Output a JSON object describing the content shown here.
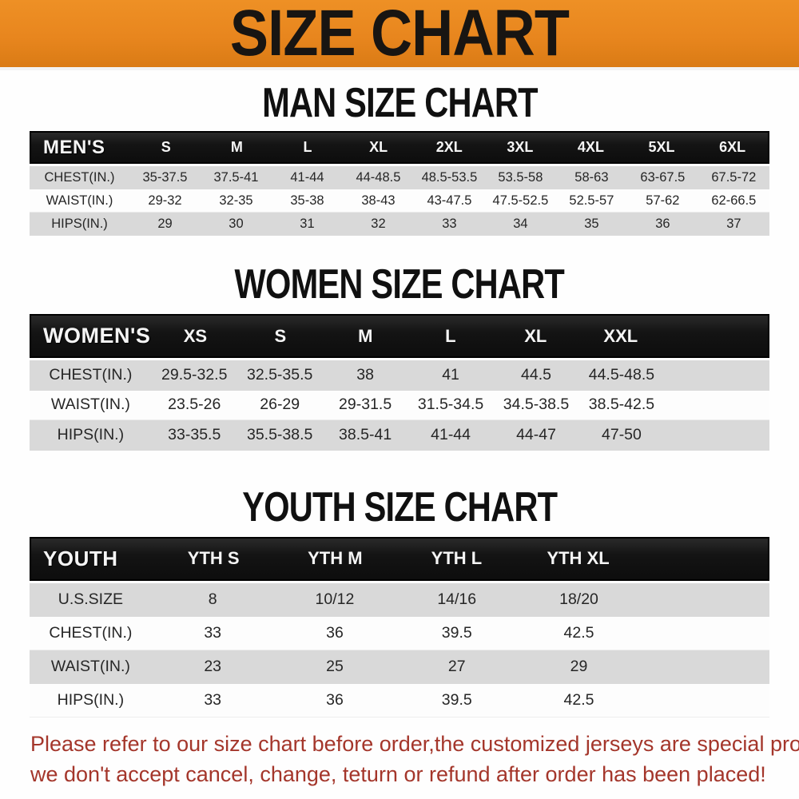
{
  "banner": {
    "title": "SIZE CHART",
    "bg_color": "#e8861e",
    "text_color": "#181512"
  },
  "chart_data": [
    {
      "type": "table",
      "title": "MAN SIZE CHART",
      "header_label": "MEN'S",
      "columns": [
        "S",
        "M",
        "L",
        "XL",
        "2XL",
        "3XL",
        "4XL",
        "5XL",
        "6XL"
      ],
      "rows": [
        {
          "label": "CHEST(IN.)",
          "values": [
            "35-37.5",
            "37.5-41",
            "41-44",
            "44-48.5",
            "48.5-53.5",
            "53.5-58",
            "58-63",
            "63-67.5",
            "67.5-72"
          ]
        },
        {
          "label": "WAIST(IN.)",
          "values": [
            "29-32",
            "32-35",
            "35-38",
            "38-43",
            "43-47.5",
            "47.5-52.5",
            "52.5-57",
            "57-62",
            "62-66.5"
          ]
        },
        {
          "label": "HIPS(IN.)",
          "values": [
            "29",
            "30",
            "31",
            "32",
            "33",
            "34",
            "35",
            "36",
            "37"
          ]
        }
      ]
    },
    {
      "type": "table",
      "title": "WOMEN SIZE CHART",
      "header_label": "WOMEN'S",
      "columns": [
        "XS",
        "S",
        "M",
        "L",
        "XL",
        "XXL"
      ],
      "rows": [
        {
          "label": "CHEST(IN.)",
          "values": [
            "29.5-32.5",
            "32.5-35.5",
            "38",
            "41",
            "44.5",
            "44.5-48.5"
          ]
        },
        {
          "label": "WAIST(IN.)",
          "values": [
            "23.5-26",
            "26-29",
            "29-31.5",
            "31.5-34.5",
            "34.5-38.5",
            "38.5-42.5"
          ]
        },
        {
          "label": "HIPS(IN.)",
          "values": [
            "33-35.5",
            "35.5-38.5",
            "38.5-41",
            "41-44",
            "44-47",
            "47-50"
          ]
        }
      ]
    },
    {
      "type": "table",
      "title": "YOUTH SIZE CHART",
      "header_label": "YOUTH",
      "columns": [
        "YTH S",
        "YTH M",
        "YTH L",
        "YTH XL"
      ],
      "rows": [
        {
          "label": "U.S.SIZE",
          "values": [
            "8",
            "10/12",
            "14/16",
            "18/20"
          ]
        },
        {
          "label": "CHEST(IN.)",
          "values": [
            "33",
            "36",
            "39.5",
            "42.5"
          ]
        },
        {
          "label": "WAIST(IN.)",
          "values": [
            "23",
            "25",
            "27",
            "29"
          ]
        },
        {
          "label": "HIPS(IN.)",
          "values": [
            "33",
            "36",
            "39.5",
            "42.5"
          ]
        }
      ]
    }
  ],
  "footer": {
    "line1": "Please refer to our size chart before order,the customized jerseys are special products,",
    "line2": "we don't accept cancel, change, teturn or refund after order has been placed!",
    "text_color": "#a4362b"
  },
  "colors": {
    "banner_orange": "#e8861e",
    "header_bar_black": "#141414",
    "shaded_row_gray": "#d9d9d9",
    "notice_red": "#a4362b"
  }
}
